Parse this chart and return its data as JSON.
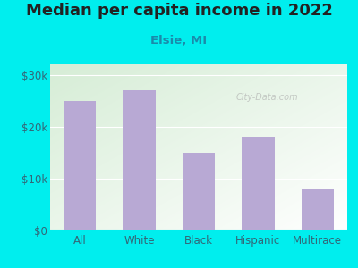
{
  "title": "Median per capita income in 2022",
  "subtitle": "Elsie, MI",
  "categories": [
    "All",
    "White",
    "Black",
    "Hispanic",
    "Multirace"
  ],
  "values": [
    25000,
    27000,
    15000,
    18000,
    8000
  ],
  "bar_color": "#b8a9d4",
  "background_color": "#00EEEE",
  "plot_bg_color_top_left": "#d6edd6",
  "plot_bg_color_bottom_right": "#ffffff",
  "title_color": "#222222",
  "subtitle_color": "#1a8aaa",
  "tick_color": "#336677",
  "ylim": [
    0,
    32000
  ],
  "yticks": [
    0,
    10000,
    20000,
    30000
  ],
  "ytick_labels": [
    "$0",
    "$10k",
    "$20k",
    "$30k"
  ],
  "watermark": "City-Data.com",
  "title_fontsize": 13,
  "subtitle_fontsize": 9.5,
  "axis_fontsize": 8.5
}
